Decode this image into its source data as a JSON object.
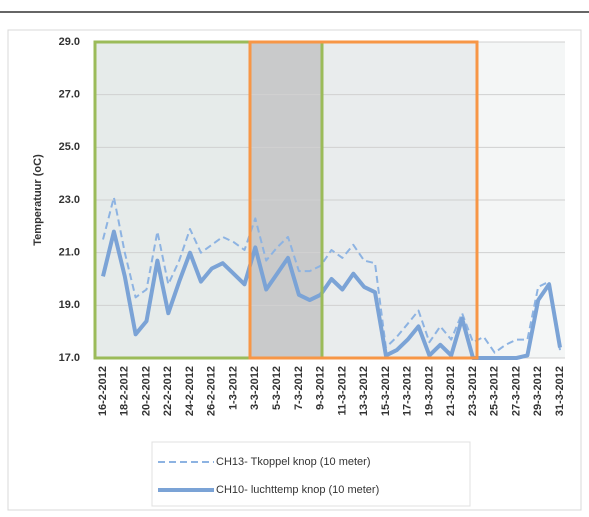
{
  "chart_data": {
    "type": "line",
    "y_label": "Temperatuur (oC)",
    "categories": [
      "16-2-2012",
      null,
      "18-2-2012",
      null,
      "20-2-2012",
      null,
      "22-2-2012",
      null,
      "24-2-2012",
      null,
      "26-2-2012",
      null,
      "1-3-2012",
      null,
      "3-3-2012",
      null,
      "5-3-2012",
      null,
      "7-3-2012",
      null,
      "9-3-2012",
      null,
      "11-3-2012",
      null,
      "13-3-2012",
      null,
      "15-3-2012",
      null,
      "17-3-2012",
      null,
      "19-3-2012",
      null,
      "21-3-2012",
      null,
      "23-3-2012",
      null,
      "25-3-2012",
      null,
      "27-3-2012",
      null,
      "29-3-2012",
      null,
      "31-3-2012"
    ],
    "series": [
      {
        "name": "CH13- Tkoppel knop (10 meter)",
        "color": "#8db3e2",
        "dashed": true,
        "values": [
          21.5,
          23.1,
          21.0,
          19.3,
          19.6,
          21.8,
          19.8,
          20.7,
          21.9,
          21.0,
          21.3,
          21.6,
          21.4,
          21.1,
          22.3,
          20.7,
          21.2,
          21.6,
          20.3,
          20.3,
          20.5,
          21.1,
          20.8,
          21.3,
          20.7,
          20.6,
          17.4,
          17.8,
          18.3,
          18.8,
          17.6,
          18.2,
          17.7,
          18.7,
          17.6,
          17.8,
          17.2,
          17.5,
          17.7,
          17.7,
          19.7,
          19.9,
          17.3
        ]
      },
      {
        "name": "CH10- luchttemp knop (10 meter)",
        "color": "#7ba3d6",
        "dashed": false,
        "values": [
          20.1,
          21.8,
          20.1,
          17.9,
          18.4,
          20.7,
          18.7,
          19.9,
          21.0,
          19.9,
          20.4,
          20.6,
          20.2,
          19.8,
          21.2,
          19.6,
          20.2,
          20.8,
          19.4,
          19.2,
          19.4,
          20.0,
          19.6,
          20.2,
          19.7,
          19.5,
          17.1,
          17.3,
          17.7,
          18.2,
          17.1,
          17.5,
          17.1,
          18.5,
          17.0,
          17.0,
          17.0,
          17.0,
          17.0,
          17.1,
          19.2,
          19.8,
          17.4
        ]
      }
    ],
    "ylim": [
      17,
      29
    ],
    "yticks": [
      {
        "value": 17,
        "label": "17.0"
      },
      {
        "value": 19,
        "label": "19.0"
      },
      {
        "value": 21,
        "label": "21.0"
      },
      {
        "value": 23,
        "label": "23.0"
      },
      {
        "value": 25,
        "label": "25.0"
      },
      {
        "value": 27,
        "label": "27.0"
      },
      {
        "value": 29,
        "label": "29.0"
      }
    ],
    "grid": true
  }
}
